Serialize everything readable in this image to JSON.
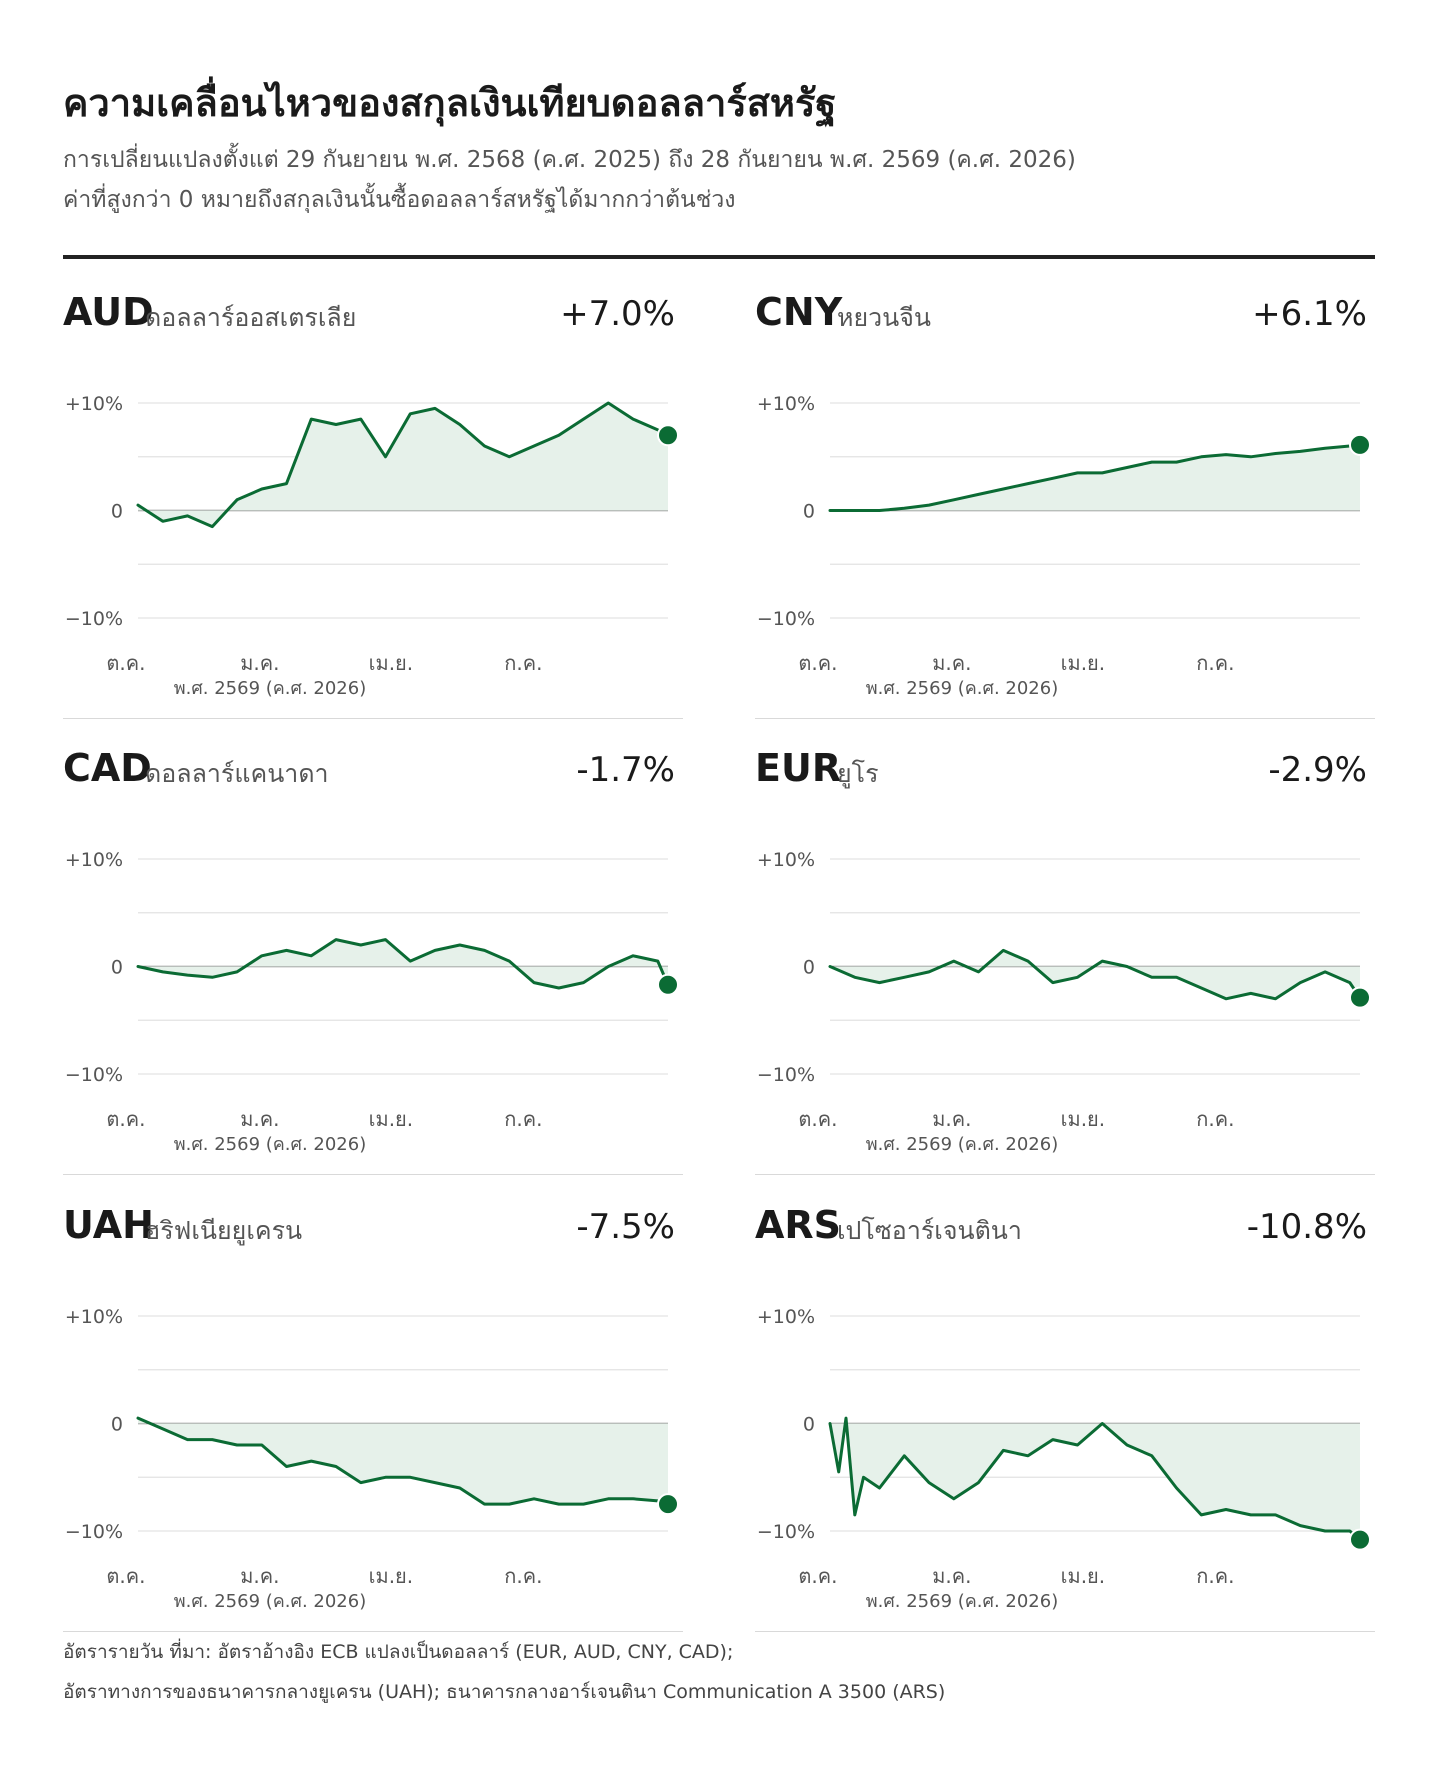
{
  "header": {
    "title": "ความเคลื่อนไหวของสกุลเงินเทียบดอลลาร์สหรัฐ",
    "subtitle_line1": "การเปลี่ยนแปลงตั้งแต่ 29 กันยายน พ.ศ. 2568 (ค.ศ. 2025) ถึง 28 กันยายน พ.ศ. 2569 (ค.ศ. 2026)",
    "subtitle_line2": "ค่าที่สูงกว่า 0 หมายถึงสกุลเงินนั้นซื้อดอลลาร์สหรัฐได้มากกว่าต้นช่วง"
  },
  "colors": {
    "line": "#0b6b34",
    "fill": "#e6f1ea",
    "grid": "#e3e3e3",
    "zero": "#8a8a8a"
  },
  "axis": {
    "y_ticks": [
      "+10%",
      "0",
      "−10%"
    ],
    "x_ticks": [
      "ต.ค.",
      "ม.ค.",
      "เม.ย.",
      "ก.ค."
    ],
    "year_label": "พ.ศ. 2569 (ค.ศ. 2026)"
  },
  "chart_data": [
    {
      "type": "line",
      "code": "AUD",
      "name": "ดอลลาร์ออสเตรเลีย",
      "change": "+7.0%",
      "final": 7.0,
      "ylim": [
        -10,
        10
      ],
      "x_range": [
        "2025-09-29",
        "2026-09-28"
      ],
      "x_ticks": [
        "2025-10-01",
        "2026-01-01",
        "2026-04-01",
        "2026-07-01"
      ],
      "x": [
        "2025-09-29",
        "2025-10-16",
        "2025-11-02",
        "2025-11-19",
        "2025-12-06",
        "2025-12-23",
        "2026-01-09",
        "2026-01-26",
        "2026-02-12",
        "2026-03-01",
        "2026-03-18",
        "2026-04-04",
        "2026-04-21",
        "2026-05-08",
        "2026-05-25",
        "2026-06-11",
        "2026-06-28",
        "2026-07-15",
        "2026-08-01",
        "2026-08-18",
        "2026-09-04",
        "2026-09-21",
        "2026-09-28"
      ],
      "values": [
        0.5,
        -1.0,
        -0.5,
        -1.5,
        1.0,
        2.0,
        2.5,
        8.5,
        8.0,
        8.5,
        5.0,
        9.0,
        9.5,
        8.0,
        6.0,
        5.0,
        6.0,
        7.0,
        8.5,
        10.0,
        8.5,
        7.5,
        7.0
      ]
    },
    {
      "type": "line",
      "code": "CNY",
      "name": "หยวนจีน",
      "change": "+6.1%",
      "final": 6.1,
      "ylim": [
        -10,
        10
      ],
      "x_range": [
        "2025-09-29",
        "2026-09-28"
      ],
      "x_ticks": [
        "2025-10-01",
        "2026-01-01",
        "2026-04-01",
        "2026-07-01"
      ],
      "x": [
        "2025-09-29",
        "2025-10-16",
        "2025-11-02",
        "2025-11-19",
        "2025-12-06",
        "2025-12-23",
        "2026-01-09",
        "2026-01-26",
        "2026-02-12",
        "2026-03-01",
        "2026-03-18",
        "2026-04-04",
        "2026-04-21",
        "2026-05-08",
        "2026-05-25",
        "2026-06-11",
        "2026-06-28",
        "2026-07-15",
        "2026-08-01",
        "2026-08-18",
        "2026-09-04",
        "2026-09-21",
        "2026-09-28"
      ],
      "values": [
        0,
        0,
        0,
        0.2,
        0.5,
        1.0,
        1.5,
        2.0,
        2.5,
        3.0,
        3.5,
        3.5,
        4.0,
        4.5,
        4.5,
        5.0,
        5.2,
        5.0,
        5.3,
        5.5,
        5.8,
        6.0,
        6.1
      ]
    },
    {
      "type": "line",
      "code": "CAD",
      "name": "ดอลลาร์แคนาดา",
      "change": "-1.7%",
      "final": -1.7,
      "ylim": [
        -10,
        10
      ],
      "x_range": [
        "2025-09-29",
        "2026-09-28"
      ],
      "x_ticks": [
        "2025-10-01",
        "2026-01-01",
        "2026-04-01",
        "2026-07-01"
      ],
      "x": [
        "2025-09-29",
        "2025-10-16",
        "2025-11-02",
        "2025-11-19",
        "2025-12-06",
        "2025-12-23",
        "2026-01-09",
        "2026-01-26",
        "2026-02-12",
        "2026-03-01",
        "2026-03-18",
        "2026-04-04",
        "2026-04-21",
        "2026-05-08",
        "2026-05-25",
        "2026-06-11",
        "2026-06-28",
        "2026-07-15",
        "2026-08-01",
        "2026-08-18",
        "2026-09-04",
        "2026-09-21",
        "2026-09-28"
      ],
      "values": [
        0,
        -0.5,
        -0.8,
        -1.0,
        -0.5,
        1.0,
        1.5,
        1.0,
        2.5,
        2.0,
        2.5,
        0.5,
        1.5,
        2.0,
        1.5,
        0.5,
        -1.5,
        -2.0,
        -1.5,
        0,
        1.0,
        0.5,
        -1.7
      ]
    },
    {
      "type": "line",
      "code": "EUR",
      "name": "ยูโร",
      "change": "-2.9%",
      "final": -2.9,
      "ylim": [
        -10,
        10
      ],
      "x_range": [
        "2025-09-29",
        "2026-09-28"
      ],
      "x_ticks": [
        "2025-10-01",
        "2026-01-01",
        "2026-04-01",
        "2026-07-01"
      ],
      "x": [
        "2025-09-29",
        "2025-10-16",
        "2025-11-02",
        "2025-11-19",
        "2025-12-06",
        "2025-12-23",
        "2026-01-09",
        "2026-01-26",
        "2026-02-12",
        "2026-03-01",
        "2026-03-18",
        "2026-04-04",
        "2026-04-21",
        "2026-05-08",
        "2026-05-25",
        "2026-06-11",
        "2026-06-28",
        "2026-07-15",
        "2026-08-01",
        "2026-08-18",
        "2026-09-04",
        "2026-09-21",
        "2026-09-28"
      ],
      "values": [
        0,
        -1.0,
        -1.5,
        -1.0,
        -0.5,
        0.5,
        -0.5,
        1.5,
        0.5,
        -1.5,
        -1.0,
        0.5,
        0,
        -1.0,
        -1.0,
        -2.0,
        -3.0,
        -2.5,
        -3.0,
        -1.5,
        -0.5,
        -1.5,
        -2.9
      ]
    },
    {
      "type": "line",
      "code": "UAH",
      "name": "ฮริฟเนียยูเครน",
      "change": "-7.5%",
      "final": -7.5,
      "ylim": [
        -10,
        10
      ],
      "x_range": [
        "2025-09-29",
        "2026-09-28"
      ],
      "x_ticks": [
        "2025-10-01",
        "2026-01-01",
        "2026-04-01",
        "2026-07-01"
      ],
      "x": [
        "2025-09-29",
        "2025-10-16",
        "2025-11-02",
        "2025-11-19",
        "2025-12-06",
        "2025-12-23",
        "2026-01-09",
        "2026-01-26",
        "2026-02-12",
        "2026-03-01",
        "2026-03-18",
        "2026-04-04",
        "2026-04-21",
        "2026-05-08",
        "2026-05-25",
        "2026-06-11",
        "2026-06-28",
        "2026-07-15",
        "2026-08-01",
        "2026-08-18",
        "2026-09-04",
        "2026-09-21",
        "2026-09-28"
      ],
      "values": [
        0.5,
        -0.5,
        -1.5,
        -1.5,
        -2.0,
        -2.0,
        -4.0,
        -3.5,
        -4.0,
        -5.5,
        -5.0,
        -5.0,
        -5.5,
        -6.0,
        -7.5,
        -7.5,
        -7.0,
        -7.5,
        -7.5,
        -7.0,
        -7.0,
        -7.2,
        -7.5
      ]
    },
    {
      "type": "line",
      "code": "ARS",
      "name": "เปโซอาร์เจนตินา",
      "change": "-10.8%",
      "final": -10.8,
      "ylim": [
        -10,
        10
      ],
      "x_range": [
        "2025-09-29",
        "2026-09-28"
      ],
      "x_ticks": [
        "2025-10-01",
        "2026-01-01",
        "2026-04-01",
        "2026-07-01"
      ],
      "x": [
        "2025-09-29",
        "2025-10-05",
        "2025-10-10",
        "2025-10-16",
        "2025-10-22",
        "2025-11-02",
        "2025-11-19",
        "2025-12-06",
        "2025-12-23",
        "2026-01-09",
        "2026-01-26",
        "2026-02-12",
        "2026-03-01",
        "2026-03-18",
        "2026-04-04",
        "2026-04-21",
        "2026-05-08",
        "2026-05-25",
        "2026-06-11",
        "2026-06-28",
        "2026-07-15",
        "2026-08-01",
        "2026-08-18",
        "2026-09-04",
        "2026-09-21",
        "2026-09-28"
      ],
      "values": [
        0,
        -4.5,
        0.5,
        -8.5,
        -5.0,
        -6.0,
        -3.0,
        -5.5,
        -7.0,
        -5.5,
        -2.5,
        -3.0,
        -1.5,
        -2.0,
        0,
        -2.0,
        -3.0,
        -6.0,
        -8.5,
        -8.0,
        -8.5,
        -8.5,
        -9.5,
        -10.0,
        -10.0,
        -10.8
      ]
    }
  ],
  "footnotes": {
    "line1": "อัตรารายวัน ที่มา: อัตราอ้างอิง ECB แปลงเป็นดอลลาร์ (EUR, AUD, CNY, CAD);",
    "line2": "อัตราทางการของธนาคารกลางยูเครน (UAH); ธนาคารกลางอาร์เจนตินา Communication A 3500 (ARS)"
  }
}
